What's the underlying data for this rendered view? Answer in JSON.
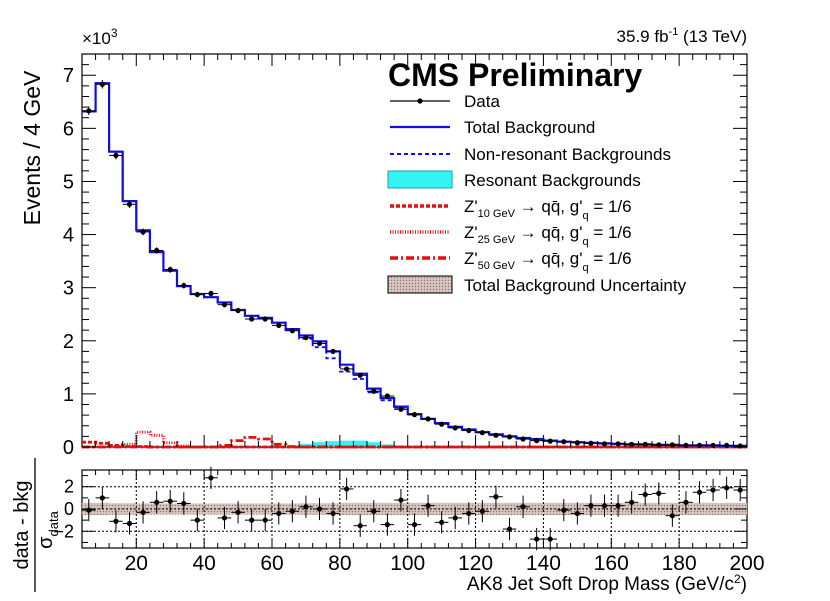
{
  "chart_data": {
    "type": "line",
    "title": "CMS Preliminary",
    "lumi": "35.9 fb",
    "lumi_sup": "-1",
    "energy": "(13 TeV)",
    "exponent_label": "×10",
    "exponent_sup": "3",
    "ylabel": "Events / 4 GeV",
    "xlabel": "AK8 Jet Soft Drop Mass (GeV/c",
    "xlabel_sup": "2",
    "xlabel_end": ")",
    "xlim": [
      4,
      200
    ],
    "ylim": [
      0,
      7.4
    ],
    "x_ticks": [
      20,
      40,
      60,
      80,
      100,
      120,
      140,
      160,
      180,
      200
    ],
    "y_ticks": [
      0,
      1,
      2,
      3,
      4,
      5,
      6,
      7
    ],
    "bin_edges": [
      4,
      8,
      12,
      16,
      20,
      24,
      28,
      32,
      36,
      40,
      44,
      48,
      52,
      56,
      60,
      64,
      68,
      72,
      76,
      80,
      84,
      88,
      92,
      96,
      100,
      104,
      108,
      112,
      116,
      120,
      124,
      128,
      132,
      136,
      140,
      144,
      148,
      152,
      156,
      160,
      164,
      168,
      172,
      176,
      180,
      184,
      188,
      192,
      196,
      200
    ],
    "series": [
      {
        "name": "Data",
        "values": [
          6.33,
          6.83,
          5.49,
          4.57,
          4.05,
          3.7,
          3.34,
          3.04,
          2.87,
          2.89,
          2.68,
          2.57,
          2.41,
          2.41,
          2.29,
          2.19,
          2.06,
          1.95,
          1.8,
          1.47,
          1.35,
          1.05,
          0.96,
          0.71,
          0.61,
          0.53,
          0.43,
          0.36,
          0.31,
          0.27,
          0.22,
          0.19,
          0.15,
          0.12,
          0.11,
          0.1,
          0.08,
          0.07,
          0.06,
          0.06,
          0.05,
          0.05,
          0.04,
          0.04,
          0.03,
          0.03,
          0.03,
          0.03,
          0.02
        ],
        "errors": [
          0.08,
          0.08,
          0.075,
          0.07,
          0.065,
          0.06,
          0.058,
          0.055,
          0.053,
          0.053,
          0.05,
          0.05,
          0.048,
          0.048,
          0.047,
          0.046,
          0.045,
          0.044,
          0.042,
          0.038,
          0.037,
          0.032,
          0.031,
          0.027,
          0.025,
          0.023,
          0.021,
          0.019,
          0.018,
          0.016,
          0.015,
          0.014,
          0.012,
          0.011,
          0.011,
          0.01,
          0.009,
          0.008,
          0.008,
          0.008,
          0.007,
          0.007,
          0.006,
          0.006,
          0.006,
          0.005,
          0.005,
          0.005,
          0.004
        ]
      },
      {
        "name": "Total Background",
        "values": [
          6.32,
          6.85,
          5.56,
          4.63,
          4.08,
          3.67,
          3.32,
          3.03,
          2.88,
          2.82,
          2.72,
          2.58,
          2.47,
          2.43,
          2.34,
          2.22,
          2.1,
          1.99,
          1.8,
          1.55,
          1.38,
          1.1,
          0.92,
          0.76,
          0.62,
          0.53,
          0.45,
          0.38,
          0.33,
          0.28,
          0.24,
          0.2,
          0.17,
          0.15,
          0.12,
          0.1,
          0.09,
          0.08,
          0.07,
          0.06,
          0.05,
          0.05,
          0.04,
          0.04,
          0.03,
          0.03,
          0.03,
          0.02,
          0.02
        ]
      },
      {
        "name": "Non-resonant Backgrounds",
        "values": [
          6.32,
          6.85,
          5.56,
          4.63,
          4.08,
          3.67,
          3.32,
          3.03,
          2.88,
          2.82,
          2.72,
          2.58,
          2.47,
          2.43,
          2.34,
          2.2,
          2.04,
          1.88,
          1.67,
          1.42,
          1.28,
          1.03,
          0.88,
          0.74,
          0.61,
          0.53,
          0.45,
          0.38,
          0.33,
          0.28,
          0.24,
          0.2,
          0.17,
          0.15,
          0.12,
          0.1,
          0.09,
          0.08,
          0.07,
          0.06,
          0.05,
          0.05,
          0.04,
          0.04,
          0.03,
          0.03,
          0.03,
          0.02,
          0.02
        ]
      },
      {
        "name": "Resonant Backgrounds",
        "values": [
          0,
          0,
          0,
          0,
          0,
          0,
          0,
          0,
          0,
          0,
          0,
          0,
          0,
          0,
          0,
          0.02,
          0.06,
          0.09,
          0.11,
          0.12,
          0.12,
          0.09,
          0.05,
          0.02,
          0.01,
          0,
          0,
          0,
          0,
          0,
          0,
          0,
          0,
          0,
          0,
          0,
          0,
          0,
          0,
          0,
          0,
          0,
          0,
          0,
          0,
          0,
          0,
          0,
          0
        ]
      },
      {
        "name": "Z'_{10 GeV} → qq̄, g'_q = 1/6",
        "values": [
          0.09,
          0.07,
          0.03,
          0.01,
          0.01,
          0,
          0,
          0,
          0,
          0,
          0,
          0,
          0,
          0,
          0,
          0,
          0,
          0,
          0,
          0,
          0,
          0,
          0,
          0,
          0,
          0,
          0,
          0,
          0,
          0,
          0,
          0,
          0,
          0,
          0,
          0,
          0,
          0,
          0,
          0,
          0,
          0,
          0,
          0,
          0,
          0,
          0,
          0,
          0
        ]
      },
      {
        "name": "Z'_{25 GeV} → qq̄, g'_q = 1/6",
        "values": [
          0,
          0,
          0.01,
          0.05,
          0.28,
          0.22,
          0.08,
          0.02,
          0,
          0,
          0,
          0,
          0,
          0,
          0,
          0,
          0,
          0,
          0,
          0,
          0,
          0,
          0,
          0,
          0,
          0,
          0,
          0,
          0,
          0,
          0,
          0,
          0,
          0,
          0,
          0,
          0,
          0,
          0,
          0,
          0,
          0,
          0,
          0,
          0,
          0,
          0,
          0,
          0
        ]
      },
      {
        "name": "Z'_{50 GeV} → qq̄, g'_q = 1/6",
        "values": [
          0,
          0,
          0,
          0,
          0,
          0,
          0,
          0,
          0,
          0,
          0.03,
          0.12,
          0.18,
          0.15,
          0.05,
          0.01,
          0,
          0,
          0,
          0,
          0,
          0,
          0,
          0,
          0,
          0,
          0,
          0,
          0,
          0,
          0,
          0,
          0,
          0,
          0,
          0,
          0,
          0,
          0,
          0,
          0,
          0,
          0,
          0,
          0,
          0,
          0,
          0,
          0
        ]
      }
    ],
    "legend": [
      {
        "key": "data",
        "label": "Data"
      },
      {
        "key": "total",
        "label": "Total Background"
      },
      {
        "key": "nonres",
        "label": "Non-resonant Backgrounds"
      },
      {
        "key": "res",
        "label": "Resonant Backgrounds"
      },
      {
        "key": "z10",
        "label_pre": "Z'",
        "label_sub": "10 GeV",
        "label_mid": " → qq̄, g'",
        "label_sub2": "q",
        "label_post": " = 1/6"
      },
      {
        "key": "z25",
        "label_pre": "Z'",
        "label_sub": "25 GeV",
        "label_mid": " → qq̄, g'",
        "label_sub2": "q",
        "label_post": " = 1/6"
      },
      {
        "key": "z50",
        "label_pre": "Z'",
        "label_sub": "50 GeV",
        "label_mid": " → qq̄, g'",
        "label_sub2": "q",
        "label_post": " = 1/6"
      },
      {
        "key": "unc",
        "label": "Total Background Uncertainty"
      }
    ],
    "ratio_panel": {
      "ylabel_top": "data - bkg",
      "ylabel_bottom": "σ",
      "ylabel_sub": "data",
      "ylim": [
        -3.5,
        3.5
      ],
      "y_ticks": [
        -2,
        0,
        2
      ],
      "values": [
        -0.1,
        1.0,
        -1.1,
        -1.3,
        -0.3,
        0.6,
        0.7,
        0.5,
        -1.0,
        2.8,
        -0.8,
        -0.3,
        -1.0,
        -1.0,
        -0.4,
        -0.2,
        0.2,
        0.0,
        -0.4,
        1.8,
        -1.5,
        -0.2,
        -1.4,
        0.8,
        -1.4,
        0.3,
        -1.2,
        -0.8,
        -0.4,
        -0.2,
        1.1,
        -1.8,
        0.2,
        -2.7,
        -2.7,
        -0.1,
        -0.4,
        0.3,
        0.3,
        0.3,
        0.6,
        1.3,
        1.4,
        -0.6,
        0.6,
        1.5,
        1.7,
        1.9,
        1.7
      ],
      "unc": [
        0.55,
        0.55,
        0.52,
        0.52,
        0.5,
        0.5,
        0.5,
        0.5,
        0.5,
        0.5,
        0.5,
        0.5,
        0.5,
        0.5,
        0.5,
        0.5,
        0.52,
        0.52,
        0.52,
        0.55,
        0.55,
        0.55,
        0.55,
        0.55,
        0.55,
        0.55,
        0.55,
        0.55,
        0.55,
        0.55,
        0.55,
        0.55,
        0.55,
        0.55,
        0.55,
        0.55,
        0.55,
        0.55,
        0.55,
        0.55,
        0.55,
        0.55,
        0.55,
        0.55,
        0.55,
        0.55,
        0.55,
        0.55,
        0.55
      ]
    }
  },
  "colors": {
    "data": "#000000",
    "total": "#1010d8",
    "nonres": "#1010ee",
    "res_fill": "#33f3f3",
    "signal": "#e0120f",
    "unc_fill": "#cbb6ae"
  }
}
